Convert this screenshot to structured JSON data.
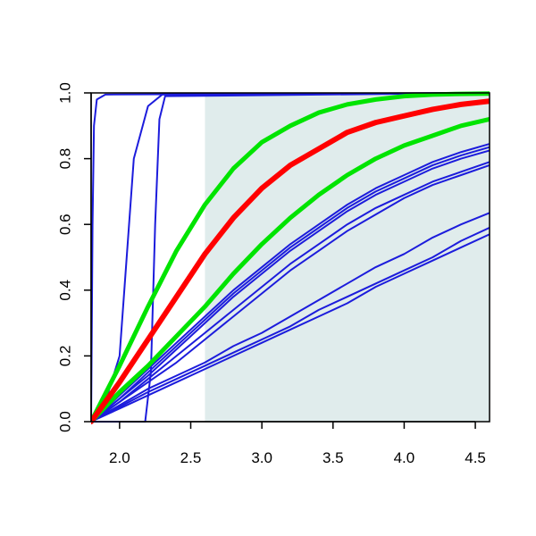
{
  "chart_data": {
    "type": "line",
    "title": "",
    "xlabel": "",
    "ylabel": "",
    "xlim": [
      1.8,
      4.6
    ],
    "ylim": [
      0.0,
      1.0
    ],
    "x_ticks": [
      "2.0",
      "2.5",
      "3.0",
      "3.5",
      "4.0",
      "4.5"
    ],
    "y_ticks": [
      "0.0",
      "0.2",
      "0.4",
      "0.6",
      "0.8",
      "1.0"
    ],
    "grid": false,
    "legend": "none",
    "shaded_region": {
      "x_from": 2.6,
      "x_to": 4.6,
      "color": "#e0ecec"
    },
    "colors": {
      "blue": "#1c1cdc",
      "red": "#ff0000",
      "green": "#00e400",
      "axis": "#000000"
    },
    "series": [
      {
        "color": "red",
        "width": 6,
        "points": [
          [
            1.8,
            0.0
          ],
          [
            2.0,
            0.12
          ],
          [
            2.2,
            0.25
          ],
          [
            2.4,
            0.38
          ],
          [
            2.6,
            0.51
          ],
          [
            2.8,
            0.62
          ],
          [
            3.0,
            0.71
          ],
          [
            3.2,
            0.78
          ],
          [
            3.4,
            0.83
          ],
          [
            3.6,
            0.88
          ],
          [
            3.8,
            0.91
          ],
          [
            4.0,
            0.93
          ],
          [
            4.2,
            0.95
          ],
          [
            4.4,
            0.965
          ],
          [
            4.6,
            0.975
          ]
        ]
      },
      {
        "color": "green",
        "width": 5,
        "points": [
          [
            1.8,
            0.0
          ],
          [
            2.0,
            0.17
          ],
          [
            2.2,
            0.35
          ],
          [
            2.4,
            0.52
          ],
          [
            2.6,
            0.66
          ],
          [
            2.8,
            0.77
          ],
          [
            3.0,
            0.85
          ],
          [
            3.2,
            0.9
          ],
          [
            3.4,
            0.94
          ],
          [
            3.6,
            0.965
          ],
          [
            3.8,
            0.98
          ],
          [
            4.0,
            0.99
          ],
          [
            4.2,
            0.995
          ],
          [
            4.4,
            0.997
          ],
          [
            4.6,
            0.998
          ]
        ]
      },
      {
        "color": "green",
        "width": 5,
        "points": [
          [
            1.8,
            0.0
          ],
          [
            2.0,
            0.09
          ],
          [
            2.2,
            0.17
          ],
          [
            2.4,
            0.26
          ],
          [
            2.6,
            0.35
          ],
          [
            2.8,
            0.45
          ],
          [
            3.0,
            0.54
          ],
          [
            3.2,
            0.62
          ],
          [
            3.4,
            0.69
          ],
          [
            3.6,
            0.75
          ],
          [
            3.8,
            0.8
          ],
          [
            4.0,
            0.84
          ],
          [
            4.2,
            0.87
          ],
          [
            4.4,
            0.9
          ],
          [
            4.6,
            0.92
          ]
        ]
      },
      {
        "color": "blue",
        "width": 2,
        "points": [
          [
            1.8,
            0.0
          ],
          [
            1.81,
            0.6
          ],
          [
            1.82,
            0.9
          ],
          [
            1.84,
            0.98
          ],
          [
            1.9,
            0.995
          ],
          [
            4.6,
            1.0
          ]
        ]
      },
      {
        "color": "blue",
        "width": 2,
        "points": [
          [
            1.8,
            0.0
          ],
          [
            1.9,
            0.06
          ],
          [
            2.0,
            0.2
          ],
          [
            2.05,
            0.5
          ],
          [
            2.1,
            0.8
          ],
          [
            2.2,
            0.96
          ],
          [
            2.3,
            0.995
          ],
          [
            4.6,
            1.0
          ]
        ]
      },
      {
        "color": "blue",
        "width": 2,
        "points": [
          [
            1.8,
            0.0
          ],
          [
            2.18,
            0.0
          ],
          [
            2.22,
            0.15
          ],
          [
            2.25,
            0.6
          ],
          [
            2.28,
            0.92
          ],
          [
            2.32,
            0.99
          ],
          [
            4.6,
            1.0
          ]
        ]
      },
      {
        "color": "blue",
        "width": 2,
        "points": [
          [
            1.8,
            0.0
          ],
          [
            2.0,
            0.08
          ],
          [
            2.2,
            0.16
          ],
          [
            2.4,
            0.24
          ],
          [
            2.6,
            0.32
          ],
          [
            2.8,
            0.4
          ],
          [
            3.0,
            0.47
          ],
          [
            3.2,
            0.54
          ],
          [
            3.4,
            0.6
          ],
          [
            3.6,
            0.66
          ],
          [
            3.8,
            0.71
          ],
          [
            4.0,
            0.75
          ],
          [
            4.2,
            0.79
          ],
          [
            4.4,
            0.82
          ],
          [
            4.6,
            0.845
          ]
        ]
      },
      {
        "color": "blue",
        "width": 2,
        "points": [
          [
            1.8,
            0.0
          ],
          [
            2.0,
            0.07
          ],
          [
            2.2,
            0.15
          ],
          [
            2.4,
            0.23
          ],
          [
            2.6,
            0.31
          ],
          [
            2.8,
            0.39
          ],
          [
            3.0,
            0.46
          ],
          [
            3.2,
            0.53
          ],
          [
            3.4,
            0.59
          ],
          [
            3.6,
            0.65
          ],
          [
            3.8,
            0.7
          ],
          [
            4.0,
            0.74
          ],
          [
            4.2,
            0.78
          ],
          [
            4.4,
            0.81
          ],
          [
            4.6,
            0.835
          ]
        ]
      },
      {
        "color": "blue",
        "width": 2,
        "points": [
          [
            1.8,
            0.0
          ],
          [
            2.0,
            0.07
          ],
          [
            2.2,
            0.14
          ],
          [
            2.4,
            0.22
          ],
          [
            2.6,
            0.3
          ],
          [
            2.8,
            0.38
          ],
          [
            3.0,
            0.45
          ],
          [
            3.2,
            0.52
          ],
          [
            3.4,
            0.58
          ],
          [
            3.6,
            0.64
          ],
          [
            3.8,
            0.69
          ],
          [
            4.0,
            0.73
          ],
          [
            4.2,
            0.77
          ],
          [
            4.4,
            0.8
          ],
          [
            4.6,
            0.825
          ]
        ]
      },
      {
        "color": "blue",
        "width": 2,
        "points": [
          [
            1.8,
            0.0
          ],
          [
            2.0,
            0.06
          ],
          [
            2.2,
            0.13
          ],
          [
            2.4,
            0.2
          ],
          [
            2.6,
            0.27
          ],
          [
            2.8,
            0.34
          ],
          [
            3.0,
            0.41
          ],
          [
            3.2,
            0.48
          ],
          [
            3.4,
            0.54
          ],
          [
            3.6,
            0.6
          ],
          [
            3.8,
            0.65
          ],
          [
            4.0,
            0.69
          ],
          [
            4.2,
            0.73
          ],
          [
            4.4,
            0.76
          ],
          [
            4.6,
            0.79
          ]
        ]
      },
      {
        "color": "blue",
        "width": 2,
        "points": [
          [
            1.8,
            0.0
          ],
          [
            2.0,
            0.06
          ],
          [
            2.2,
            0.12
          ],
          [
            2.4,
            0.18
          ],
          [
            2.6,
            0.25
          ],
          [
            2.8,
            0.32
          ],
          [
            3.0,
            0.39
          ],
          [
            3.2,
            0.46
          ],
          [
            3.4,
            0.52
          ],
          [
            3.6,
            0.58
          ],
          [
            3.8,
            0.63
          ],
          [
            4.0,
            0.68
          ],
          [
            4.2,
            0.72
          ],
          [
            4.4,
            0.75
          ],
          [
            4.6,
            0.78
          ]
        ]
      },
      {
        "color": "blue",
        "width": 2,
        "points": [
          [
            1.8,
            0.0
          ],
          [
            2.0,
            0.05
          ],
          [
            2.2,
            0.1
          ],
          [
            2.4,
            0.14
          ],
          [
            2.6,
            0.18
          ],
          [
            2.8,
            0.23
          ],
          [
            3.0,
            0.27
          ],
          [
            3.2,
            0.32
          ],
          [
            3.4,
            0.37
          ],
          [
            3.6,
            0.42
          ],
          [
            3.8,
            0.47
          ],
          [
            4.0,
            0.51
          ],
          [
            4.2,
            0.56
          ],
          [
            4.4,
            0.6
          ],
          [
            4.6,
            0.635
          ]
        ]
      },
      {
        "color": "blue",
        "width": 2,
        "points": [
          [
            1.8,
            0.0
          ],
          [
            2.0,
            0.045
          ],
          [
            2.2,
            0.09
          ],
          [
            2.4,
            0.13
          ],
          [
            2.6,
            0.17
          ],
          [
            2.8,
            0.21
          ],
          [
            3.0,
            0.25
          ],
          [
            3.2,
            0.29
          ],
          [
            3.4,
            0.34
          ],
          [
            3.6,
            0.38
          ],
          [
            3.8,
            0.42
          ],
          [
            4.0,
            0.46
          ],
          [
            4.2,
            0.5
          ],
          [
            4.4,
            0.55
          ],
          [
            4.6,
            0.59
          ]
        ]
      },
      {
        "color": "blue",
        "width": 2,
        "points": [
          [
            1.8,
            0.0
          ],
          [
            2.0,
            0.04
          ],
          [
            2.2,
            0.08
          ],
          [
            2.4,
            0.12
          ],
          [
            2.6,
            0.16
          ],
          [
            2.8,
            0.2
          ],
          [
            3.0,
            0.24
          ],
          [
            3.2,
            0.28
          ],
          [
            3.4,
            0.32
          ],
          [
            3.6,
            0.36
          ],
          [
            3.8,
            0.41
          ],
          [
            4.0,
            0.45
          ],
          [
            4.2,
            0.49
          ],
          [
            4.4,
            0.53
          ],
          [
            4.6,
            0.57
          ]
        ]
      }
    ]
  }
}
